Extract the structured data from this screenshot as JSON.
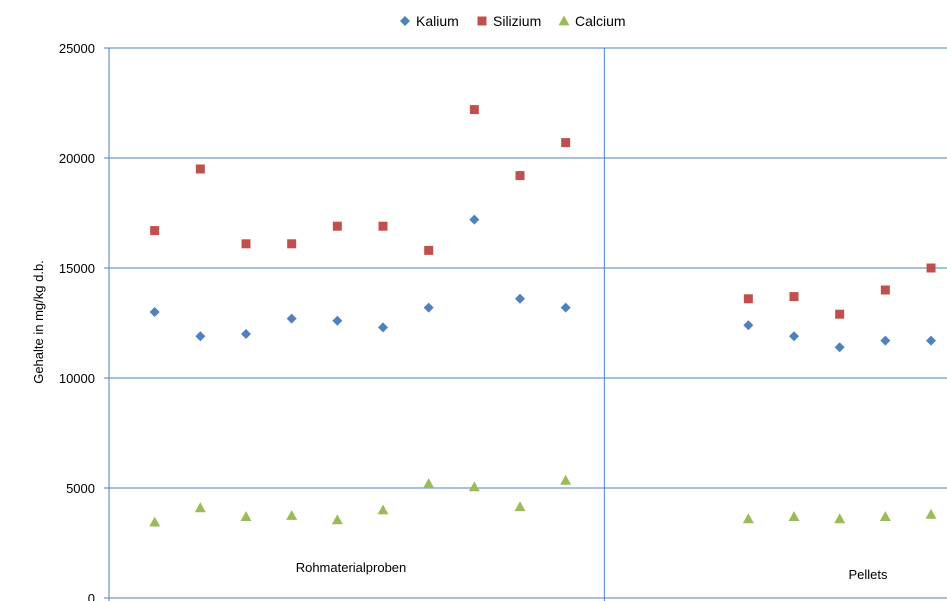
{
  "chart_data": {
    "type": "scatter",
    "title": "",
    "xlabel": "",
    "ylabel": "Gehalte in mg/kg d.b.",
    "ylim": [
      0,
      25000
    ],
    "yticks": [
      0,
      5000,
      10000,
      15000,
      20000,
      25000
    ],
    "grid": true,
    "legend_position": "top",
    "groups": [
      {
        "label": "Rohmaterialproben",
        "x_start": 0,
        "x_end": 11
      },
      {
        "label": "Pellets",
        "x_start": 11,
        "x_end": 17
      }
    ],
    "x": [
      1,
      2,
      3,
      4,
      5,
      6,
      7,
      8,
      9,
      10,
      14,
      15,
      16,
      17,
      18
    ],
    "series": [
      {
        "name": "Kalium",
        "marker": "diamond",
        "color": "#4F81BD",
        "values": [
          13000,
          11900,
          12000,
          12700,
          12600,
          12300,
          13200,
          17200,
          13600,
          13200,
          12400,
          11900,
          11400,
          11700,
          11700
        ]
      },
      {
        "name": "Silizium",
        "marker": "square",
        "color": "#C0504D",
        "values": [
          16700,
          19500,
          16100,
          16100,
          16900,
          16900,
          15800,
          22200,
          19200,
          20700,
          13600,
          13700,
          12900,
          14000,
          15000
        ]
      },
      {
        "name": "Calcium",
        "marker": "triangle",
        "color": "#9BBB59",
        "values": [
          3450,
          4100,
          3700,
          3750,
          3550,
          4000,
          5200,
          5050,
          4150,
          5350,
          3600,
          3700,
          3600,
          3700,
          3800
        ]
      }
    ]
  }
}
